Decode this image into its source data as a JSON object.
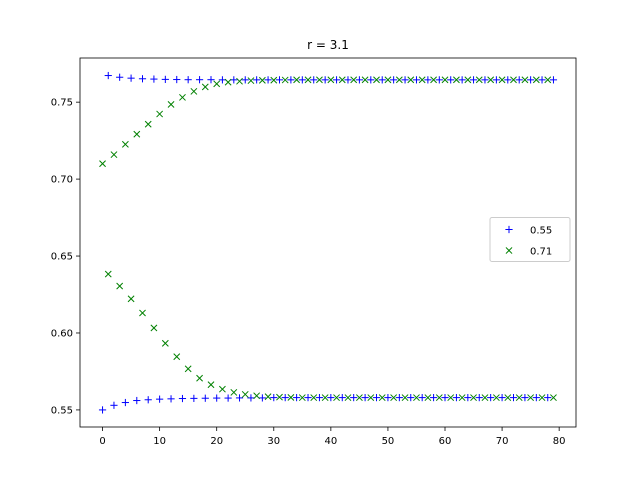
{
  "chart_data": {
    "type": "scatter",
    "title": "r = 3.1",
    "xlabel": "",
    "ylabel": "",
    "xlim": [
      -3.95,
      82.95
    ],
    "ylim": [
      0.5389,
      0.7787
    ],
    "xticks": [
      0,
      10,
      20,
      30,
      40,
      50,
      60,
      70,
      80
    ],
    "yticks": [
      0.55,
      0.6,
      0.65,
      0.7,
      0.75
    ],
    "xtick_labels": [
      "0",
      "10",
      "20",
      "30",
      "40",
      "50",
      "60",
      "70",
      "80"
    ],
    "ytick_labels": [
      "0.55",
      "0.60",
      "0.65",
      "0.70",
      "0.75"
    ],
    "grid": false,
    "legend_position": "center-right",
    "series": [
      {
        "name": "0.55",
        "marker": "plus",
        "color": "#0000ff",
        "x": [
          0,
          1,
          2,
          3,
          4,
          5,
          6,
          7,
          8,
          9,
          10,
          11,
          12,
          13,
          14,
          15,
          16,
          17,
          18,
          19,
          20,
          21,
          22,
          23,
          24,
          25,
          26,
          27,
          28,
          29,
          30,
          31,
          32,
          33,
          34,
          35,
          36,
          37,
          38,
          39,
          40,
          41,
          42,
          43,
          44,
          45,
          46,
          47,
          48,
          49,
          50,
          51,
          52,
          53,
          54,
          55,
          56,
          57,
          58,
          59,
          60,
          61,
          62,
          63,
          64,
          65,
          66,
          67,
          68,
          69,
          70,
          71,
          72,
          73,
          74,
          75,
          76,
          77,
          78,
          79
        ],
        "y": [
          0.55,
          0.7673,
          0.553,
          0.7662,
          0.5548,
          0.7656,
          0.5561,
          0.7652,
          0.5566,
          0.765,
          0.557,
          0.7648,
          0.5572,
          0.7647,
          0.5574,
          0.7646,
          0.5575,
          0.7646,
          0.5576,
          0.7646,
          0.5577,
          0.7645,
          0.5577,
          0.7645,
          0.5578,
          0.7645,
          0.5578,
          0.7645,
          0.5578,
          0.7645,
          0.558,
          0.7645,
          0.558,
          0.7645,
          0.558,
          0.7645,
          0.558,
          0.7645,
          0.558,
          0.7645,
          0.558,
          0.7645,
          0.558,
          0.7645,
          0.558,
          0.7645,
          0.558,
          0.7645,
          0.558,
          0.7645,
          0.558,
          0.7645,
          0.558,
          0.7645,
          0.558,
          0.7645,
          0.558,
          0.7645,
          0.558,
          0.7645,
          0.558,
          0.7645,
          0.558,
          0.7645,
          0.558,
          0.7645,
          0.558,
          0.7645,
          0.558,
          0.7645,
          0.558,
          0.7645,
          0.558,
          0.7645,
          0.558,
          0.7645,
          0.558,
          0.7645,
          0.558,
          0.7645
        ]
      },
      {
        "name": "0.71",
        "marker": "x",
        "color": "#008000",
        "x": [
          0,
          1,
          2,
          3,
          4,
          5,
          6,
          7,
          8,
          9,
          10,
          11,
          12,
          13,
          14,
          15,
          16,
          17,
          18,
          19,
          20,
          21,
          22,
          23,
          24,
          25,
          26,
          27,
          28,
          29,
          30,
          31,
          32,
          33,
          34,
          35,
          36,
          37,
          38,
          39,
          40,
          41,
          42,
          43,
          44,
          45,
          46,
          47,
          48,
          49,
          50,
          51,
          52,
          53,
          54,
          55,
          56,
          57,
          58,
          59,
          60,
          61,
          62,
          63,
          64,
          65,
          66,
          67,
          68,
          69,
          70,
          71,
          72,
          73,
          74,
          75,
          76,
          77,
          78,
          79
        ],
        "y": [
          0.71,
          0.6383,
          0.7159,
          0.6305,
          0.7226,
          0.6222,
          0.7292,
          0.613,
          0.7357,
          0.6033,
          0.7423,
          0.5933,
          0.7485,
          0.5846,
          0.7531,
          0.5767,
          0.757,
          0.5706,
          0.7599,
          0.5664,
          0.7619,
          0.5635,
          0.763,
          0.5614,
          0.7636,
          0.5601,
          0.764,
          0.5592,
          0.7642,
          0.5586,
          0.7643,
          0.5583,
          0.7644,
          0.5581,
          0.7645,
          0.558,
          0.7645,
          0.558,
          0.7645,
          0.558,
          0.7645,
          0.558,
          0.7645,
          0.558,
          0.7645,
          0.558,
          0.7645,
          0.558,
          0.7645,
          0.558,
          0.7645,
          0.558,
          0.7645,
          0.558,
          0.7645,
          0.558,
          0.7645,
          0.558,
          0.7645,
          0.558,
          0.7645,
          0.558,
          0.7645,
          0.558,
          0.7645,
          0.558,
          0.7645,
          0.558,
          0.7645,
          0.558,
          0.7645,
          0.558,
          0.7645,
          0.558,
          0.7645,
          0.558,
          0.7645,
          0.558,
          0.7645,
          0.558
        ]
      }
    ]
  }
}
